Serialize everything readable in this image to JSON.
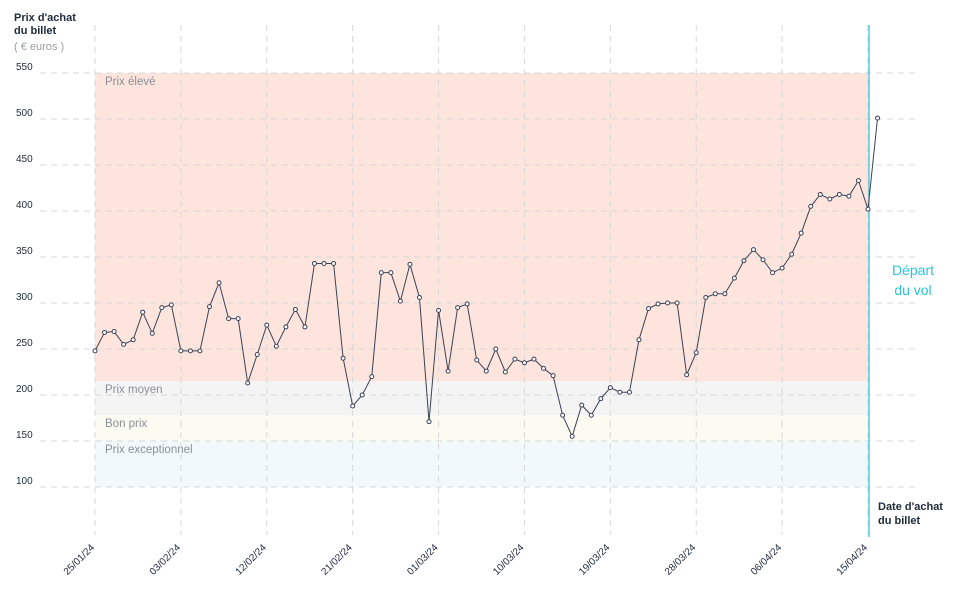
{
  "chart_data": {
    "type": "line",
    "y_title": [
      "Prix d'achat",
      "du billet"
    ],
    "y_unit": "( € euros )",
    "x_title": [
      "Date d'achat",
      "du billet"
    ],
    "departure_label": [
      "Départ",
      "du vol"
    ],
    "color": "#3b4257",
    "departure_color": "#29c3e0",
    "categories": [
      "25/01/24",
      null,
      null,
      null,
      null,
      null,
      null,
      null,
      null,
      "03/02/24",
      null,
      null,
      null,
      null,
      null,
      null,
      null,
      null,
      "12/02/24",
      null,
      null,
      null,
      null,
      null,
      null,
      null,
      null,
      "21/02/24",
      null,
      null,
      null,
      null,
      null,
      null,
      null,
      null,
      "01/03/24",
      null,
      null,
      null,
      null,
      null,
      null,
      null,
      null,
      "10/03/24",
      null,
      null,
      null,
      null,
      null,
      null,
      null,
      null,
      "19/03/24",
      null,
      null,
      null,
      null,
      null,
      null,
      null,
      null,
      "28/03/24",
      null,
      null,
      null,
      null,
      null,
      null,
      null,
      null,
      "06/04/24",
      null,
      null,
      null,
      null,
      null,
      null,
      null,
      null,
      "15/04/24",
      null
    ],
    "values": [
      248,
      268,
      269,
      255,
      260,
      290,
      267,
      295,
      298,
      248,
      248,
      248,
      296,
      322,
      283,
      283,
      213,
      244,
      276,
      253,
      274,
      293,
      274,
      343,
      343,
      343,
      240,
      188,
      200,
      220,
      333,
      333,
      302,
      342,
      306,
      171,
      292,
      226,
      295,
      299,
      238,
      226,
      250,
      225,
      239,
      235,
      239,
      229,
      221,
      178,
      155,
      189,
      178,
      196,
      208,
      203,
      203,
      260,
      294,
      299,
      300,
      300,
      222,
      246,
      306,
      310,
      310,
      327,
      346,
      358,
      347,
      333,
      338,
      353,
      376,
      405,
      418,
      413,
      418,
      416,
      433,
      402,
      501
    ],
    "bands": [
      {
        "name": "Prix élevé",
        "from": 215,
        "to": 550,
        "color": "#fde4dc"
      },
      {
        "name": "Prix moyen",
        "from": 178,
        "to": 215,
        "color": "#f4f4f5"
      },
      {
        "name": "Bon prix",
        "from": 150,
        "to": 178,
        "color": "#fbfbf1"
      },
      {
        "name": "Prix exceptionnel",
        "from": 100,
        "to": 150,
        "color": "#f1f9fc"
      }
    ],
    "ylim": [
      50,
      600
    ],
    "yticks": [
      100,
      150,
      200,
      250,
      300,
      350,
      400,
      450,
      500,
      550
    ],
    "grid": true
  }
}
